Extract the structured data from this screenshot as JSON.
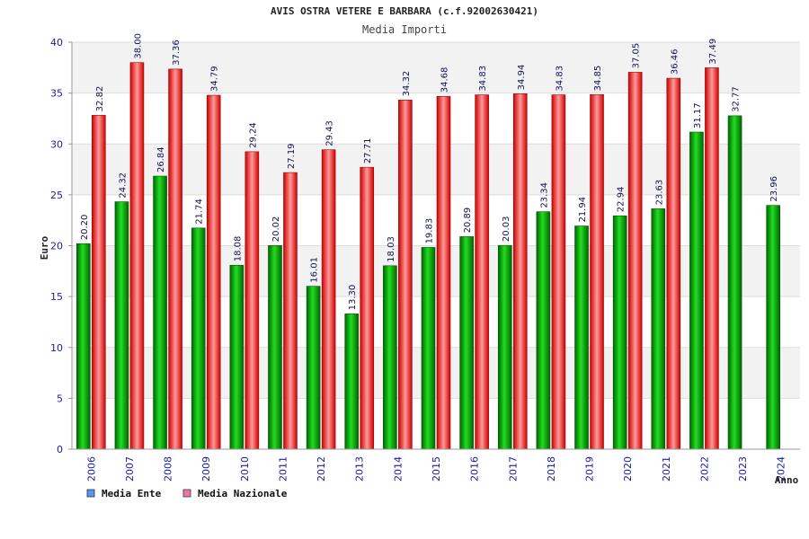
{
  "chart_data": {
    "type": "bar",
    "title": "AVIS OSTRA VETERE E BARBARA (c.f.92002630421)",
    "subtitle": "Media Importi",
    "xlabel": "Anno",
    "ylabel": "Euro",
    "ylim": [
      0,
      40
    ],
    "yticks": [
      "0",
      "5",
      "10",
      "15",
      "20",
      "25",
      "30",
      "35",
      "40"
    ],
    "grid": true,
    "legend_position": "bottom-left",
    "categories": [
      "2006",
      "2007",
      "2008",
      "2009",
      "2010",
      "2011",
      "2012",
      "2013",
      "2014",
      "2015",
      "2016",
      "2017",
      "2018",
      "2019",
      "2020",
      "2021",
      "2022",
      "2023",
      "2024"
    ],
    "series": [
      {
        "name": "Media Ente",
        "color": "#00aa00",
        "legend_color": "#5599ee",
        "values": [
          20.2,
          24.32,
          26.84,
          21.74,
          18.08,
          20.02,
          16.01,
          13.3,
          18.03,
          19.83,
          20.89,
          20.03,
          23.34,
          21.94,
          22.94,
          23.63,
          31.17,
          32.77,
          23.96
        ],
        "labels": [
          "20.20",
          "24.32",
          "26.84",
          "21.74",
          "18.08",
          "20.02",
          "16.01",
          "13.30",
          "18.03",
          "19.83",
          "20.89",
          "20.03",
          "23.34",
          "21.94",
          "22.94",
          "23.63",
          "31.17",
          "32.77",
          "23.96"
        ]
      },
      {
        "name": "Media Nazionale",
        "color": "#ee2222",
        "legend_color": "#ee77aa",
        "values": [
          32.82,
          38.0,
          37.36,
          34.79,
          29.24,
          27.19,
          29.43,
          27.71,
          34.32,
          34.68,
          34.83,
          34.94,
          34.83,
          34.85,
          37.05,
          36.46,
          37.49,
          null,
          null
        ],
        "labels": [
          "32.82",
          "38.00",
          "37.36",
          "34.79",
          "29.24",
          "27.19",
          "29.43",
          "27.71",
          "34.32",
          "34.68",
          "34.83",
          "34.94",
          "34.83",
          "34.85",
          "37.05",
          "36.46",
          "37.49",
          "",
          ""
        ]
      }
    ]
  }
}
